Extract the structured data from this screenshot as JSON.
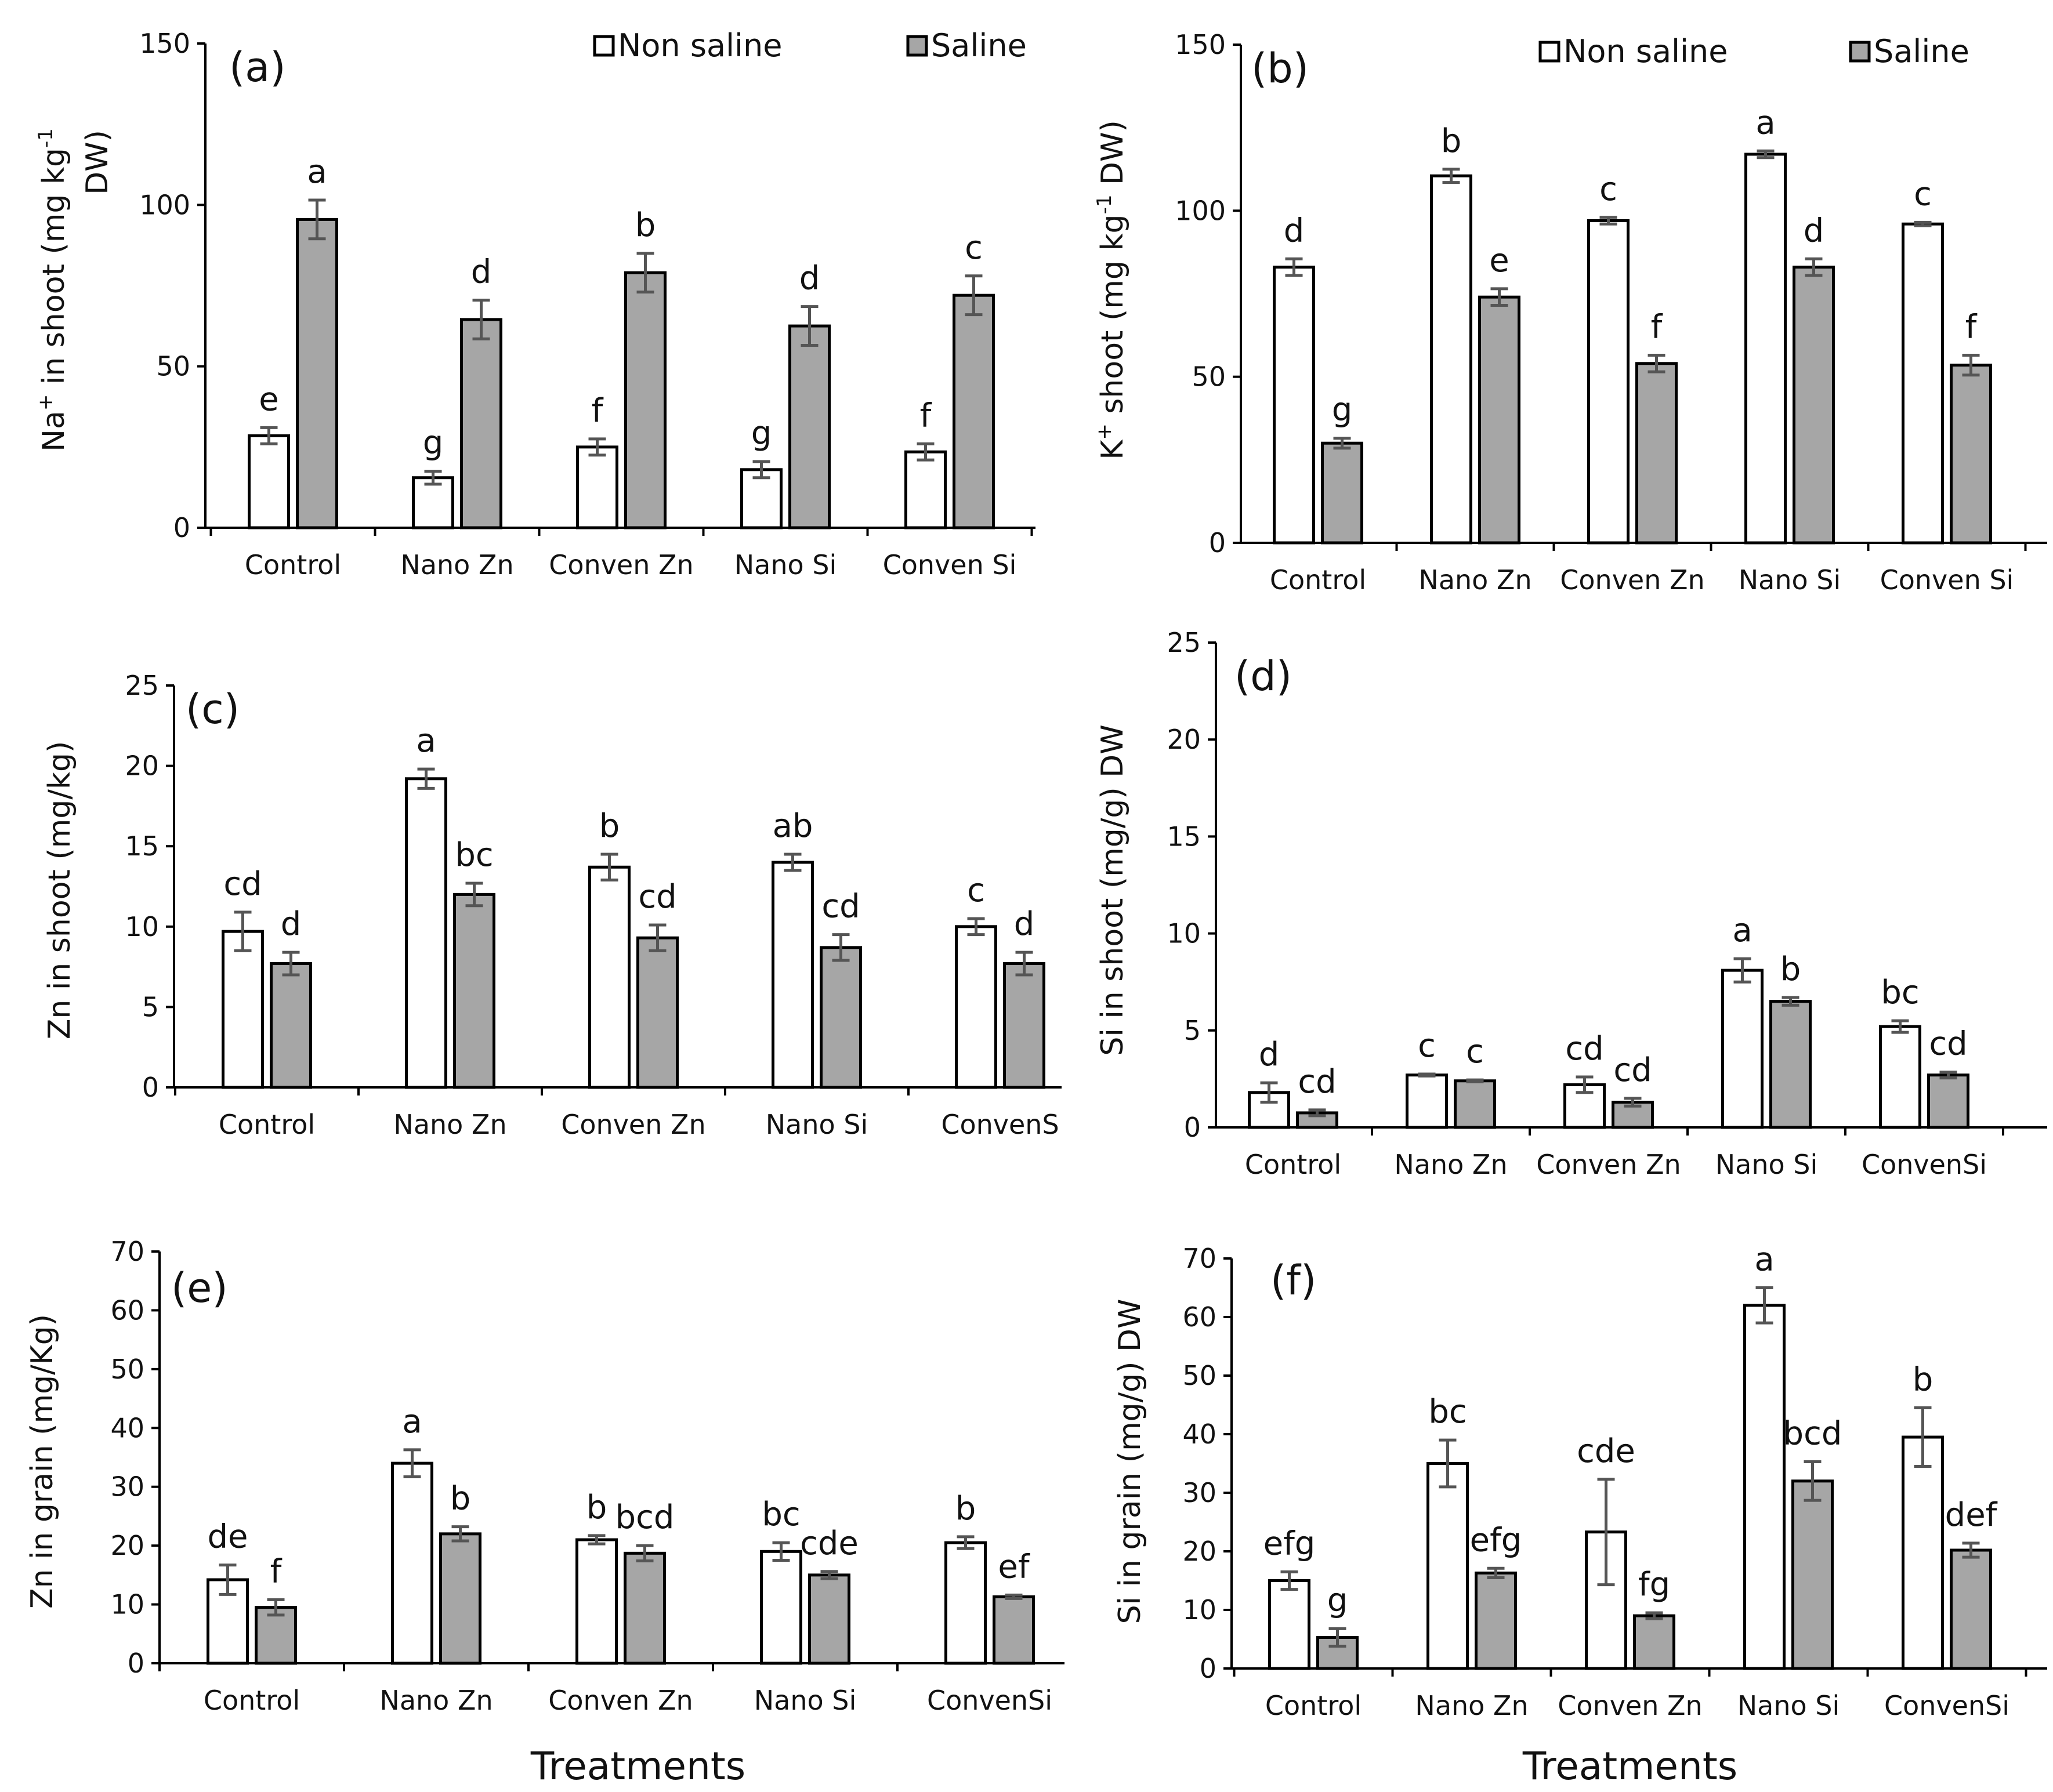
{
  "figure": {
    "legend": {
      "series": [
        "Non saline",
        "Saline"
      ]
    },
    "colors": {
      "non_saline_fill": "#ffffff",
      "saline_fill": "#a6a6a6",
      "bar_stroke": "#000000",
      "error_bar": "#555555"
    },
    "x_axis_title": "Treatments"
  },
  "chart_data": [
    {
      "panel": "(a)",
      "type": "bar",
      "ylabel": "Na+ in shoot (mg kg-1 DW)",
      "ylabel_parts": {
        "pre": "Na",
        "sup1": "+",
        "mid": " in shoot (mg kg",
        "sup2": "-1",
        "line2": "DW)"
      },
      "categories": [
        "Control",
        "Nano Zn",
        "Conven Zn",
        "Nano Si",
        "Conven Si"
      ],
      "ylim": [
        0,
        150
      ],
      "yticks": [
        0,
        50,
        100,
        150
      ],
      "legend_labels": [
        "Non saline",
        "Saline"
      ],
      "xlabel": "",
      "series": [
        {
          "name": "Non saline",
          "values": [
            28.5,
            15.5,
            25,
            18,
            23.5
          ],
          "errors": [
            2.5,
            2,
            2.5,
            2.5,
            2.5
          ],
          "letters": [
            "e",
            "g",
            "f",
            "g",
            "f"
          ]
        },
        {
          "name": "Saline",
          "values": [
            95.5,
            64.5,
            79,
            62.5,
            72
          ],
          "errors": [
            6,
            6,
            6,
            6,
            6
          ],
          "letters": [
            "a",
            "d",
            "b",
            "d",
            "c"
          ]
        }
      ]
    },
    {
      "panel": "(b)",
      "type": "bar",
      "ylabel": "K+ shoot (mg kg-1 DW)",
      "ylabel_parts": {
        "pre": "K",
        "sup1": "+",
        "mid": " shoot (mg kg",
        "sup2": "-1",
        "post": " DW)"
      },
      "categories": [
        "Control",
        "Nano Zn",
        "Conven Zn",
        "Nano Si",
        "Conven Si"
      ],
      "ylim": [
        0,
        150
      ],
      "yticks": [
        0,
        50,
        100,
        150
      ],
      "legend_labels": [
        "Non saline",
        "Saline"
      ],
      "xlabel": "",
      "series": [
        {
          "name": "Non saline",
          "values": [
            83,
            110.5,
            97,
            117,
            96
          ],
          "errors": [
            2.5,
            2,
            1,
            1,
            0.5
          ],
          "letters": [
            "d",
            "b",
            "c",
            "a",
            "c"
          ]
        },
        {
          "name": "Saline",
          "values": [
            30,
            74,
            54,
            83,
            53.5
          ],
          "errors": [
            1.5,
            2.5,
            2.5,
            2.5,
            3
          ],
          "letters": [
            "g",
            "e",
            "f",
            "d",
            "f"
          ]
        }
      ]
    },
    {
      "panel": "(c)",
      "type": "bar",
      "ylabel": "Zn in shoot (mg/kg)",
      "categories": [
        "Control",
        "Nano Zn",
        "Conven Zn",
        "Nano Si",
        "ConvenS"
      ],
      "ylim": [
        0,
        25
      ],
      "yticks": [
        0,
        5,
        10,
        15,
        20,
        25
      ],
      "xlabel": "",
      "series": [
        {
          "name": "Non saline",
          "values": [
            9.7,
            19.2,
            13.7,
            14,
            10
          ],
          "errors": [
            1.2,
            0.6,
            0.8,
            0.5,
            0.5
          ],
          "letters": [
            "cd",
            "a",
            "b",
            "ab",
            "c"
          ]
        },
        {
          "name": "Saline",
          "values": [
            7.7,
            12,
            9.3,
            8.7,
            7.7
          ],
          "errors": [
            0.7,
            0.7,
            0.8,
            0.8,
            0.7
          ],
          "letters": [
            "d",
            "bc",
            "cd",
            "cd",
            "d"
          ]
        }
      ]
    },
    {
      "panel": "(d)",
      "type": "bar",
      "ylabel": "Si in shoot (mg/g) DW",
      "categories": [
        "Control",
        "Nano Zn",
        "Conven Zn",
        "Nano Si",
        "ConvenSi"
      ],
      "ylim": [
        0,
        25
      ],
      "yticks": [
        0,
        5,
        10,
        15,
        20,
        25
      ],
      "xlabel": "",
      "series": [
        {
          "name": "Non saline",
          "values": [
            1.8,
            2.7,
            2.2,
            8.1,
            5.2
          ],
          "errors": [
            0.5,
            0.05,
            0.4,
            0.6,
            0.3
          ],
          "letters": [
            "d",
            "c",
            "cd",
            "a",
            "bc"
          ]
        },
        {
          "name": "Saline",
          "values": [
            0.75,
            2.4,
            1.3,
            6.5,
            2.7
          ],
          "errors": [
            0.15,
            0.05,
            0.2,
            0.2,
            0.15
          ],
          "letters": [
            "cd",
            "c",
            "cd",
            "b",
            "cd"
          ]
        }
      ]
    },
    {
      "panel": "(e)",
      "type": "bar",
      "ylabel": "Zn in grain (mg/Kg)",
      "categories": [
        "Control",
        "Nano Zn",
        "Conven Zn",
        "Nano Si",
        "ConvenSi"
      ],
      "ylim": [
        0,
        70
      ],
      "yticks": [
        0,
        10,
        20,
        30,
        40,
        50,
        60,
        70
      ],
      "xlabel": "Treatments",
      "series": [
        {
          "name": "Non saline",
          "values": [
            14.2,
            34,
            21,
            19,
            20.5
          ],
          "errors": [
            2.5,
            2.3,
            0.7,
            1.5,
            1
          ],
          "letters": [
            "de",
            "a",
            "b",
            "bc",
            "b"
          ]
        },
        {
          "name": "Saline",
          "values": [
            9.5,
            22,
            18.7,
            15,
            11.3
          ],
          "errors": [
            1.3,
            1.2,
            1.3,
            0.6,
            0.3
          ],
          "letters": [
            "f",
            "b",
            "bcd",
            "cde",
            "ef"
          ]
        }
      ]
    },
    {
      "panel": "(f)",
      "type": "bar",
      "ylabel": "Si in grain (mg/g) DW",
      "categories": [
        "Control",
        "Nano Zn",
        "Conven Zn",
        "Nano Si",
        "ConvenSi"
      ],
      "ylim": [
        0,
        70
      ],
      "yticks": [
        0,
        10,
        20,
        30,
        40,
        50,
        60,
        70
      ],
      "xlabel": "Treatments",
      "series": [
        {
          "name": "Non saline",
          "values": [
            15,
            35,
            23.3,
            62,
            39.5
          ],
          "errors": [
            1.5,
            4,
            9,
            3,
            5
          ],
          "letters": [
            "efg",
            "bc",
            "cde",
            "a",
            "b"
          ]
        },
        {
          "name": "Saline",
          "values": [
            5.3,
            16.3,
            9,
            32,
            20.2
          ],
          "errors": [
            1.5,
            0.8,
            0.5,
            3.3,
            1.2
          ],
          "letters": [
            "g",
            "efg",
            "fg",
            "bcd",
            "def"
          ]
        }
      ]
    }
  ]
}
